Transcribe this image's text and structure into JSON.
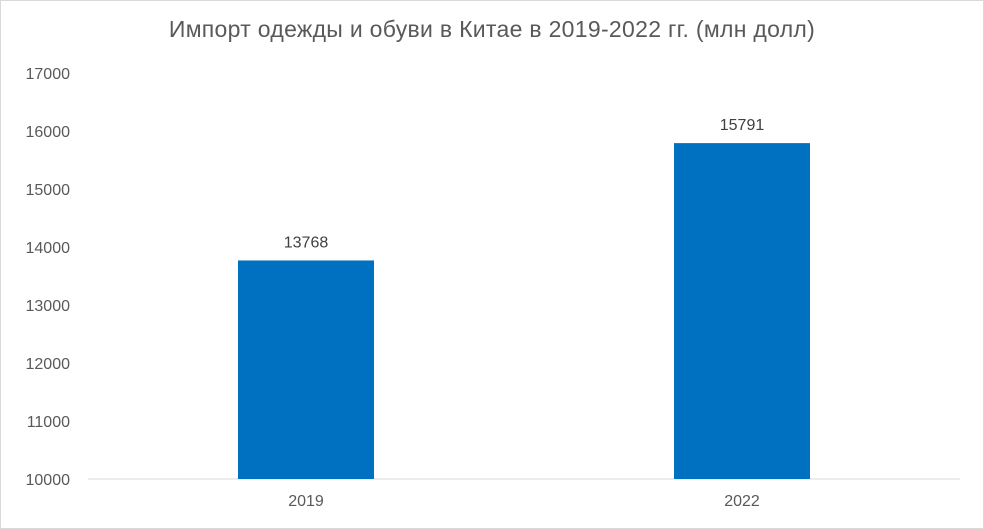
{
  "chart_data": {
    "type": "bar",
    "title": "Импорт одежды и обуви в Китае в 2019-2022 гг. (млн долл)",
    "xlabel": "",
    "ylabel": "",
    "categories": [
      "2019",
      "2022"
    ],
    "values": [
      13768,
      15791
    ],
    "data_labels": [
      "13768",
      "15791"
    ],
    "ylim": [
      10000,
      17000
    ],
    "yticks": [
      10000,
      11000,
      12000,
      13000,
      14000,
      15000,
      16000,
      17000
    ],
    "ytick_labels": [
      "10000",
      "11000",
      "12000",
      "13000",
      "14000",
      "15000",
      "16000",
      "17000"
    ],
    "grid": false,
    "legend": "none",
    "bar_color": "#0070c0"
  }
}
